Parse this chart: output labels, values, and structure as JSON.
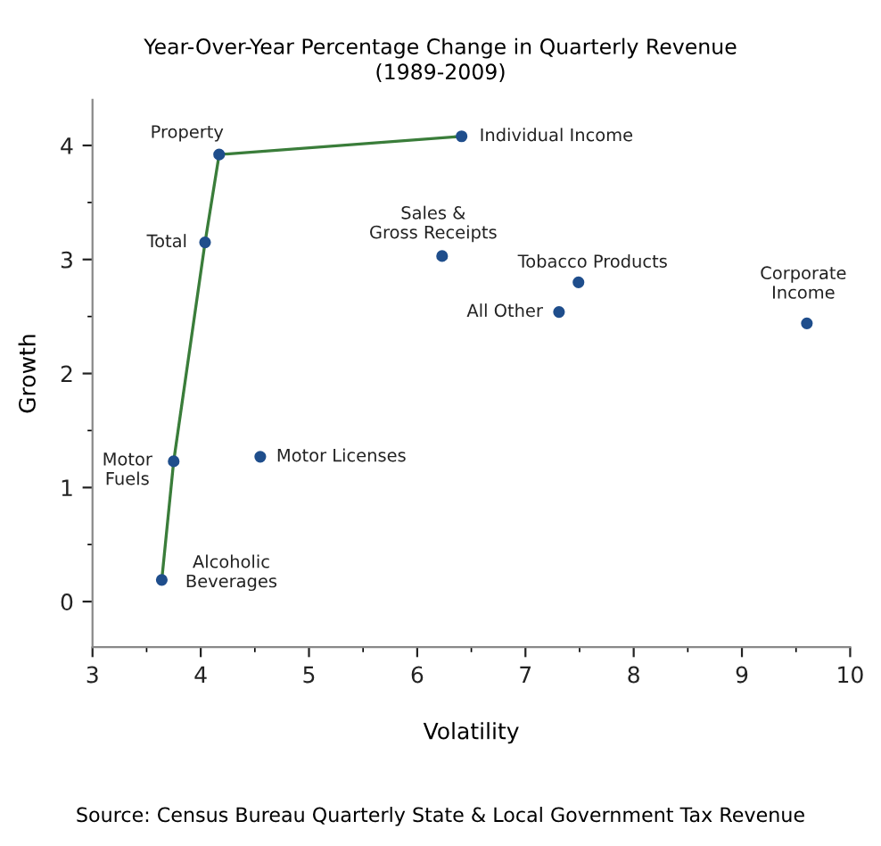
{
  "chart_data": {
    "type": "scatter",
    "title": "Year-Over-Year Percentage Change in Quarterly Revenue\n(1989-2009)",
    "xlabel": "Volatility",
    "ylabel": "Growth",
    "xlim": [
      3,
      10
    ],
    "ylim": [
      -0.4,
      4.4
    ],
    "xticks": [
      3,
      4,
      5,
      6,
      7,
      8,
      9,
      10
    ],
    "yticks": [
      0,
      1,
      2,
      3,
      4
    ],
    "grid": false,
    "legend": false,
    "marker": "circle",
    "series": [
      {
        "type": "line",
        "color": "#3a7d3a",
        "x": [
          3.64,
          3.75,
          4.04,
          4.17,
          6.41
        ],
        "values": [
          0.19,
          1.23,
          3.15,
          3.92,
          4.08
        ],
        "marker": "none",
        "line_style": "solid"
      },
      {
        "color": "#1f4e8c",
        "x": [
          3.64,
          3.75,
          4.04,
          4.17,
          6.41,
          4.55,
          6.23,
          7.49,
          7.31,
          9.6
        ],
        "values": [
          0.19,
          1.23,
          3.15,
          3.92,
          4.08,
          1.27,
          3.03,
          2.8,
          2.54,
          2.44
        ]
      }
    ],
    "annotations": [
      {
        "text": "Alcoholic\nBeverages",
        "x": 3.64,
        "y": 0.19
      },
      {
        "text": "Motor\nFuels",
        "x": 3.75,
        "y": 1.23
      },
      {
        "text": "Total",
        "x": 4.04,
        "y": 3.15
      },
      {
        "text": "Property",
        "x": 4.17,
        "y": 3.92
      },
      {
        "text": "Individual Income",
        "x": 6.41,
        "y": 4.08
      },
      {
        "text": "Motor Licenses",
        "x": 4.55,
        "y": 1.27
      },
      {
        "text": "Sales &\nGross Receipts",
        "x": 6.23,
        "y": 3.03
      },
      {
        "text": "Tobacco Products",
        "x": 7.49,
        "y": 2.8
      },
      {
        "text": "All Other",
        "x": 7.31,
        "y": 2.54
      },
      {
        "text": "Corporate\nIncome",
        "x": 9.6,
        "y": 2.44
      },
      "Source: Census Bureau Quarterly State & Local Government Tax Revenue"
    ]
  }
}
